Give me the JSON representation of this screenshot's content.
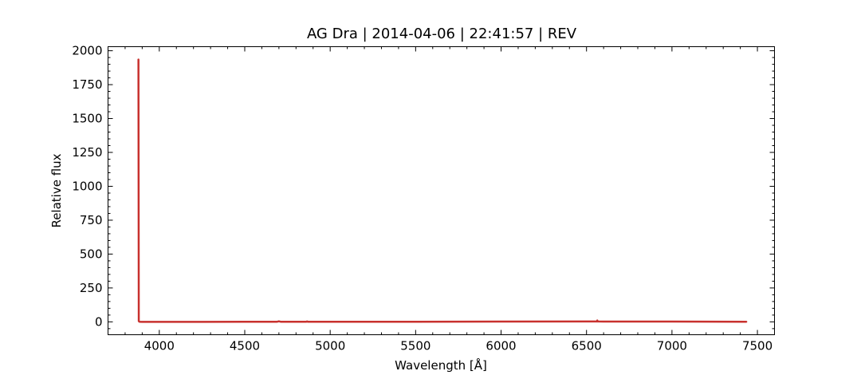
{
  "chart_data": {
    "type": "line",
    "title": "AG Dra | 2014-04-06 | 22:41:57 | REV",
    "xlabel": "Wavelength [Å]",
    "ylabel": "Relative flux",
    "xlim": [
      3700,
      7600
    ],
    "ylim": [
      -95,
      2030
    ],
    "xticks": [
      4000,
      4500,
      5000,
      5500,
      6000,
      6500,
      7000,
      7500
    ],
    "yticks": [
      0,
      250,
      500,
      750,
      1000,
      1250,
      1500,
      1750,
      2000
    ],
    "xminor_step": 100,
    "yminor_step": 50,
    "grid": false,
    "tick_direction": "in",
    "series": [
      {
        "color": "#c8312e",
        "x": [
          3878,
          3880,
          3884,
          3900,
          4000,
          4200,
          4500,
          4690,
          4700,
          4710,
          4860,
          4865,
          4870,
          5000,
          5500,
          6000,
          6500,
          6560,
          6563,
          6566,
          6600,
          7000,
          7435
        ],
        "y": [
          1935,
          5,
          1,
          0,
          0,
          0,
          1,
          1,
          4,
          1,
          1,
          3,
          1,
          1,
          1,
          2,
          3,
          3,
          10,
          3,
          2,
          2,
          1
        ]
      }
    ]
  }
}
